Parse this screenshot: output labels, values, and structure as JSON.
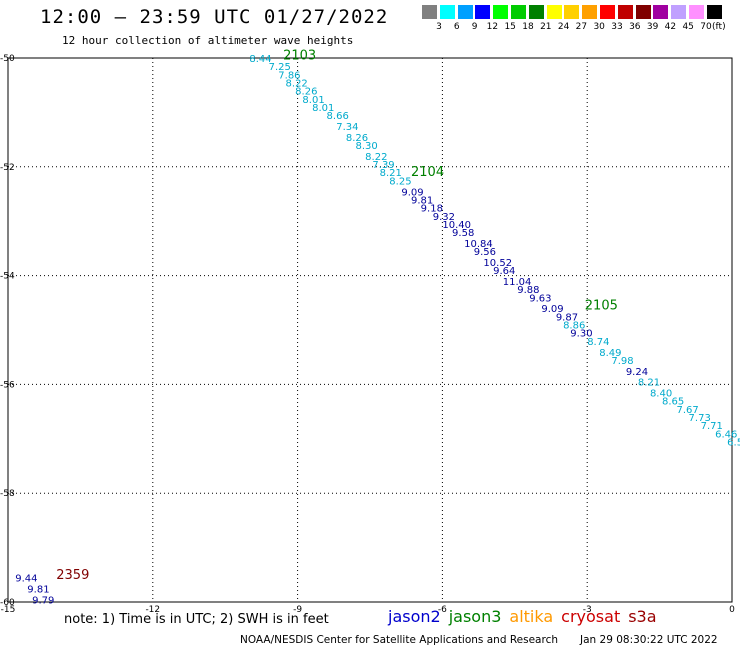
{
  "title": "12:00 — 23:59 UTC 01/27/2022",
  "subtitle": "12 hour collection of altimeter wave heights",
  "legend": {
    "unit": "(ft)",
    "colors": [
      "#808080",
      "#00ffff",
      "#00a0ff",
      "#0000ff",
      "#00ff00",
      "#00cc00",
      "#008000",
      "#ffff00",
      "#ffd000",
      "#ffa000",
      "#ff0000",
      "#c00000",
      "#800000",
      "#a000a0",
      "#c0a0ff",
      "#ff90ff",
      "#000000"
    ],
    "labels": [
      "3",
      "6",
      "9",
      "12",
      "15",
      "18",
      "21",
      "24",
      "27",
      "30",
      "33",
      "36",
      "39",
      "42",
      "45",
      "70"
    ]
  },
  "chart_data": {
    "type": "map",
    "xlim": [
      -15,
      0
    ],
    "ylim": [
      -60,
      -50
    ],
    "x_ticks": [
      -15,
      -12,
      -9,
      -6,
      -3,
      0
    ],
    "y_ticks": [
      -50,
      -52,
      -54,
      -56,
      -58,
      -60
    ],
    "x_tick_labels": [
      "-15",
      "-12",
      "-9",
      "-6",
      "-3",
      "0"
    ],
    "y_tick_labels": [
      "-50",
      "-52",
      "-54",
      "-56",
      "-58",
      "-60"
    ],
    "grid": true,
    "points": [
      {
        "lon": -10.0,
        "lat": -50.0,
        "v": "8.44",
        "c": "#00aacc"
      },
      {
        "lon": -9.6,
        "lat": -50.15,
        "v": "7.25",
        "c": "#00aacc"
      },
      {
        "lon": -9.4,
        "lat": -50.3,
        "v": "7.86",
        "c": "#00aacc"
      },
      {
        "lon": -9.25,
        "lat": -50.45,
        "v": "8.22",
        "c": "#00aacc"
      },
      {
        "lon": -9.05,
        "lat": -50.6,
        "v": "8.26",
        "c": "#00aacc"
      },
      {
        "lon": -8.9,
        "lat": -50.75,
        "v": "8.01",
        "c": "#00aacc"
      },
      {
        "lon": -8.7,
        "lat": -50.9,
        "v": "8.01",
        "c": "#00aacc"
      },
      {
        "lon": -8.4,
        "lat": -51.05,
        "v": "8.66",
        "c": "#00aacc"
      },
      {
        "lon": -8.2,
        "lat": -51.25,
        "v": "7.34",
        "c": "#00aacc"
      },
      {
        "lon": -8.0,
        "lat": -51.45,
        "v": "8.26",
        "c": "#00aacc"
      },
      {
        "lon": -7.8,
        "lat": -51.6,
        "v": "8.30",
        "c": "#00aacc"
      },
      {
        "lon": -7.6,
        "lat": -51.8,
        "v": "8.22",
        "c": "#00aacc"
      },
      {
        "lon": -7.45,
        "lat": -51.95,
        "v": "7.39",
        "c": "#00aacc"
      },
      {
        "lon": -7.3,
        "lat": -52.1,
        "v": "8.21",
        "c": "#00aacc"
      },
      {
        "lon": -7.1,
        "lat": -52.25,
        "v": "8.25",
        "c": "#00aacc"
      },
      {
        "lon": -6.85,
        "lat": -52.45,
        "v": "9.09",
        "c": "#000099"
      },
      {
        "lon": -6.65,
        "lat": -52.6,
        "v": "9.81",
        "c": "#000099"
      },
      {
        "lon": -6.45,
        "lat": -52.75,
        "v": "9.18",
        "c": "#000099"
      },
      {
        "lon": -6.2,
        "lat": -52.9,
        "v": "9.32",
        "c": "#000099"
      },
      {
        "lon": -6.0,
        "lat": -53.05,
        "v": "10.40",
        "c": "#000099"
      },
      {
        "lon": -5.8,
        "lat": -53.2,
        "v": "9.58",
        "c": "#000099"
      },
      {
        "lon": -5.55,
        "lat": -53.4,
        "v": "10.84",
        "c": "#000099"
      },
      {
        "lon": -5.35,
        "lat": -53.55,
        "v": "9.56",
        "c": "#000099"
      },
      {
        "lon": -5.15,
        "lat": -53.75,
        "v": "10.52",
        "c": "#000099"
      },
      {
        "lon": -4.95,
        "lat": -53.9,
        "v": "9.64",
        "c": "#000099"
      },
      {
        "lon": -4.75,
        "lat": -54.1,
        "v": "11.04",
        "c": "#000099"
      },
      {
        "lon": -4.45,
        "lat": -54.25,
        "v": "9.88",
        "c": "#000099"
      },
      {
        "lon": -4.2,
        "lat": -54.4,
        "v": "9.63",
        "c": "#000099"
      },
      {
        "lon": -3.95,
        "lat": -54.6,
        "v": "9.09",
        "c": "#000099"
      },
      {
        "lon": -3.65,
        "lat": -54.75,
        "v": "9.87",
        "c": "#000099"
      },
      {
        "lon": -3.5,
        "lat": -54.9,
        "v": "8.86",
        "c": "#00aacc"
      },
      {
        "lon": -3.35,
        "lat": -55.05,
        "v": "9.30",
        "c": "#000099"
      },
      {
        "lon": -3.0,
        "lat": -55.2,
        "v": "8.74",
        "c": "#00aacc"
      },
      {
        "lon": -2.75,
        "lat": -55.4,
        "v": "8.49",
        "c": "#00aacc"
      },
      {
        "lon": -2.5,
        "lat": -55.55,
        "v": "7.98",
        "c": "#00aacc"
      },
      {
        "lon": -2.2,
        "lat": -55.75,
        "v": "9.24",
        "c": "#000099"
      },
      {
        "lon": -1.95,
        "lat": -55.95,
        "v": "8.21",
        "c": "#00aacc"
      },
      {
        "lon": -1.7,
        "lat": -56.15,
        "v": "8.40",
        "c": "#00aacc"
      },
      {
        "lon": -1.45,
        "lat": -56.3,
        "v": "8.65",
        "c": "#00aacc"
      },
      {
        "lon": -1.15,
        "lat": -56.45,
        "v": "7.67",
        "c": "#00aacc"
      },
      {
        "lon": -0.9,
        "lat": -56.6,
        "v": "7.73",
        "c": "#00aacc"
      },
      {
        "lon": -0.65,
        "lat": -56.75,
        "v": "7.71",
        "c": "#00aacc"
      },
      {
        "lon": -0.35,
        "lat": -56.9,
        "v": "6.46",
        "c": "#00aacc"
      },
      {
        "lon": -0.1,
        "lat": -57.05,
        "v": "6.5",
        "c": "#00aacc"
      },
      {
        "lon": -14.85,
        "lat": -59.55,
        "v": "9.44",
        "c": "#000099"
      },
      {
        "lon": -14.6,
        "lat": -59.75,
        "v": "9.81",
        "c": "#000099"
      },
      {
        "lon": -14.5,
        "lat": -59.95,
        "v": "9.79",
        "c": "#000099"
      }
    ],
    "time_labels": [
      {
        "lon": -9.3,
        "lat": -49.95,
        "t": "2103",
        "c": "#008000"
      },
      {
        "lon": -6.65,
        "lat": -52.1,
        "t": "2104",
        "c": "#008000"
      },
      {
        "lon": -3.05,
        "lat": -54.55,
        "t": "2105",
        "c": "#008000"
      },
      {
        "lon": -14.0,
        "lat": -59.5,
        "t": "2359",
        "c": "#800000"
      }
    ]
  },
  "note": "note: 1) Time is in UTC; 2) SWH is in feet",
  "satellites": [
    {
      "name": "jason2",
      "color": "#0000cc"
    },
    {
      "name": "jason3",
      "color": "#008000"
    },
    {
      "name": "altika",
      "color": "#ff9900"
    },
    {
      "name": "cryosat",
      "color": "#cc0000"
    },
    {
      "name": "s3a",
      "color": "#990000"
    }
  ],
  "footer": "NOAA/NESDIS Center for Satellite Applications and Research",
  "footer_time": "Jan 29 08:30:22 UTC 2022"
}
